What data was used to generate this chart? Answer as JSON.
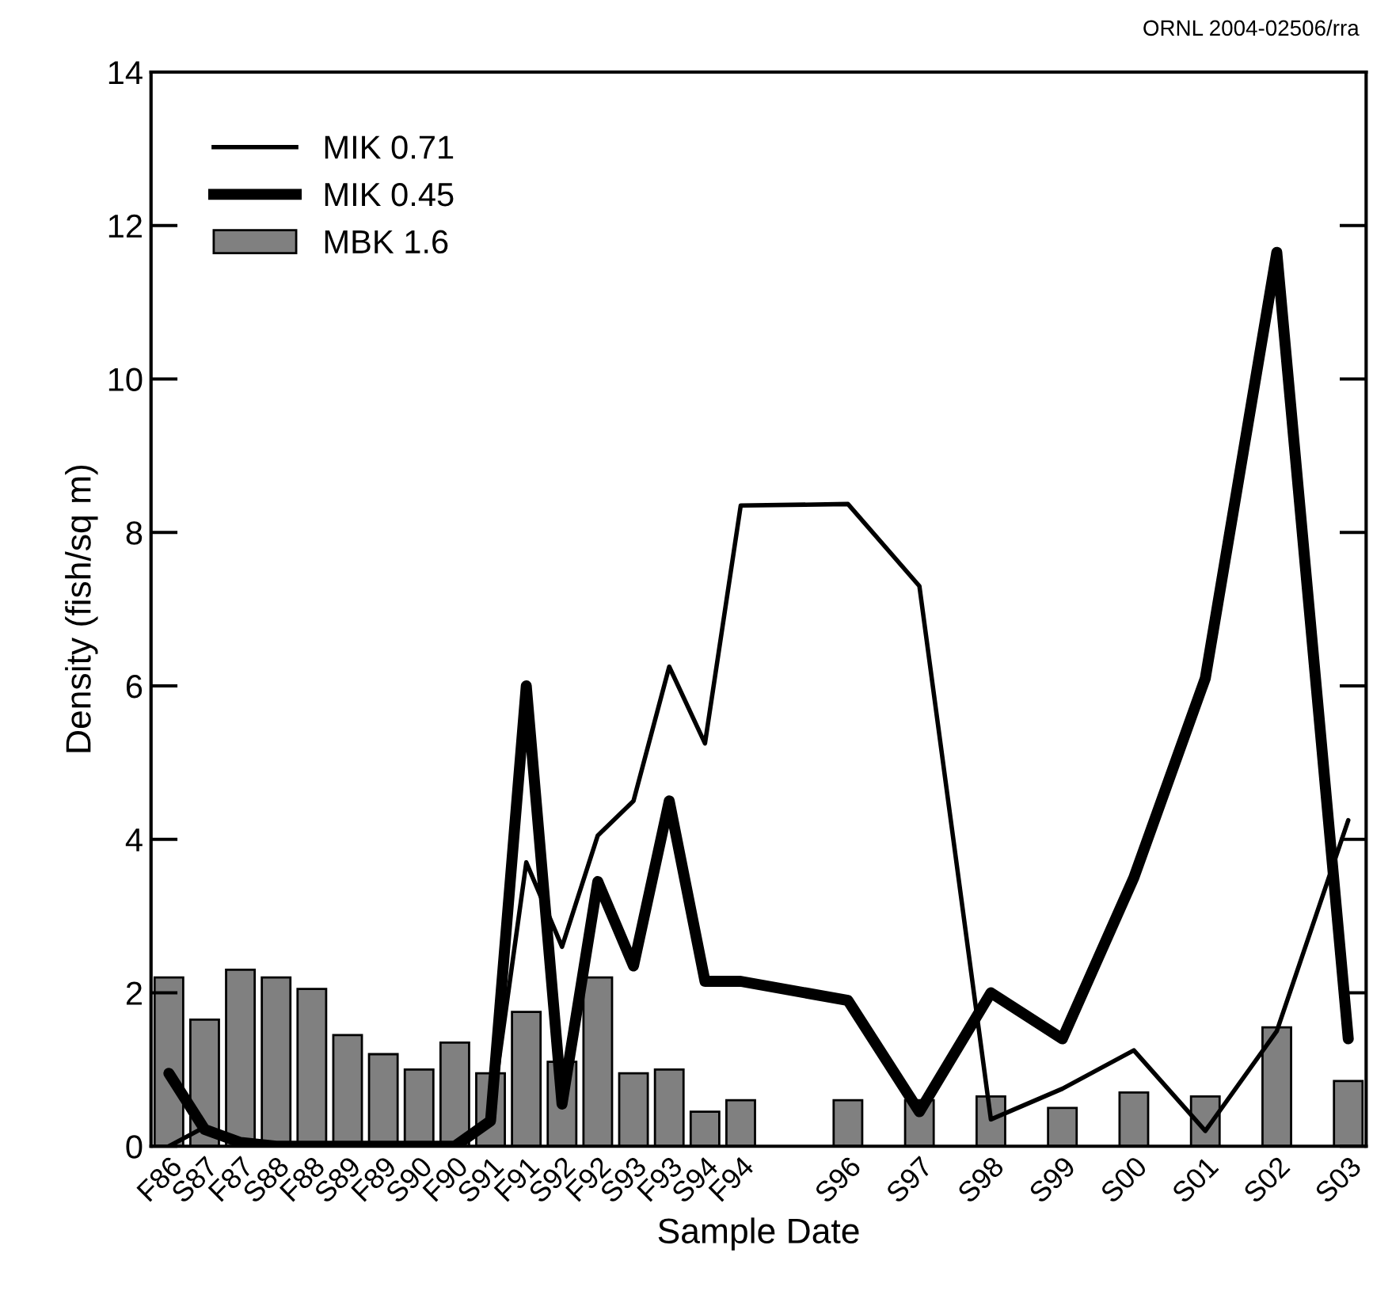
{
  "chart_data": {
    "type": "bar",
    "xlabel": "Sample Date",
    "ylabel": "Density (fish/sq m)",
    "annotations": [
      "ORNL 2004-02506/rra"
    ],
    "categories": [
      "F86",
      "S87",
      "F87",
      "S88",
      "F88",
      "S89",
      "F89",
      "S90",
      "F90",
      "S91",
      "F91",
      "S92",
      "F92",
      "S93",
      "F93",
      "S94",
      "F94",
      null,
      null,
      "S96",
      null,
      "S97",
      null,
      "S98",
      null,
      "S99",
      null,
      "S00",
      null,
      "S01",
      null,
      "S02",
      null,
      "S03"
    ],
    "series": [
      {
        "name": "MIK 0.71",
        "type": "line",
        "color": "#000000",
        "line_style": "solid",
        "values": [
          0,
          0.25,
          0.05,
          0,
          0,
          0,
          0,
          0,
          0,
          0.33,
          3.7,
          2.6,
          4.05,
          4.5,
          6.25,
          5.25,
          8.35,
          null,
          null,
          8.37,
          null,
          7.3,
          null,
          0.35,
          null,
          0.75,
          null,
          1.25,
          null,
          0.2,
          null,
          1.5,
          null,
          4.25
        ]
      },
      {
        "name": "MIK 0.45",
        "type": "line",
        "color": "#000000",
        "line_style": "solid",
        "values": [
          0.95,
          0.22,
          0.05,
          0,
          0,
          0,
          0,
          0,
          0,
          0.33,
          6.0,
          0.55,
          3.45,
          2.35,
          4.5,
          2.15,
          2.15,
          null,
          null,
          1.9,
          null,
          0.45,
          null,
          2.0,
          null,
          1.4,
          null,
          3.5,
          null,
          6.1,
          null,
          11.65,
          null,
          1.4
        ]
      },
      {
        "name": "MBK 1.6",
        "color": "#808080",
        "values": [
          2.2,
          1.65,
          2.3,
          2.2,
          2.05,
          1.45,
          1.2,
          1.0,
          1.35,
          0.95,
          1.75,
          1.1,
          2.2,
          0.95,
          1.0,
          0.45,
          0.6,
          null,
          null,
          0.6,
          null,
          0.6,
          null,
          0.65,
          null,
          0.5,
          null,
          0.7,
          null,
          0.65,
          null,
          1.55,
          null,
          0.85
        ]
      }
    ],
    "ylim": [
      0,
      14
    ],
    "yticks": [
      0,
      2,
      4,
      6,
      8,
      10,
      12,
      14
    ],
    "grid": false,
    "legend": "top left"
  }
}
